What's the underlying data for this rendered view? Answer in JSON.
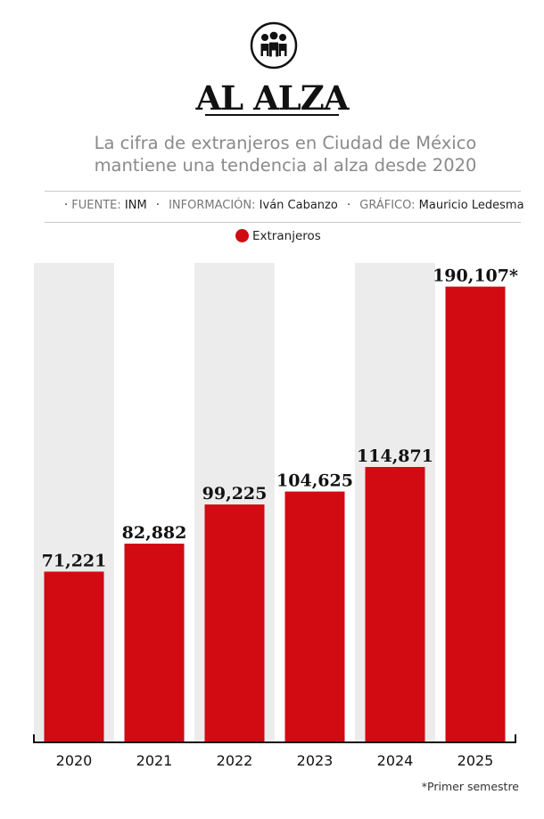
{
  "header": {
    "title": "AL ALZA",
    "subtitle_line1": "La cifra de extranjeros en Ciudad de México",
    "subtitle_line2": "mantiene una tendencia al alza desde 2020",
    "logo_icon": "people-group-icon"
  },
  "credits": {
    "source_label": "FUENTE:",
    "source_value": "INM",
    "info_label": "INFORMACIÓN:",
    "info_value": "Iván Cabanzo",
    "graphic_label": "GRÁFICO:",
    "graphic_value": "Mauricio Ledesma"
  },
  "legend": {
    "label": "Extranjeros",
    "color": "#d20a11"
  },
  "footnote": "*Primer semestre",
  "chart_data": {
    "type": "bar",
    "title": "AL ALZA",
    "subtitle": "La cifra de extranjeros en Ciudad de México mantiene una tendencia al alza desde 2020",
    "categories": [
      "2020",
      "2021",
      "2022",
      "2023",
      "2024",
      "2025"
    ],
    "series": [
      {
        "name": "Extranjeros",
        "values": [
          71221,
          82882,
          99225,
          104625,
          114871,
          190107
        ],
        "color": "#d20a11"
      }
    ],
    "data_labels": [
      "71,221",
      "82,882",
      "99,225",
      "104,625",
      "114,871",
      "190,107*"
    ],
    "ylim": [
      0,
      200000
    ],
    "grid": false,
    "axis_visible": false,
    "legend_position": "top-center",
    "colors": {
      "bar": "#d20a11",
      "band": "#ececec",
      "axis": "#111111"
    }
  }
}
